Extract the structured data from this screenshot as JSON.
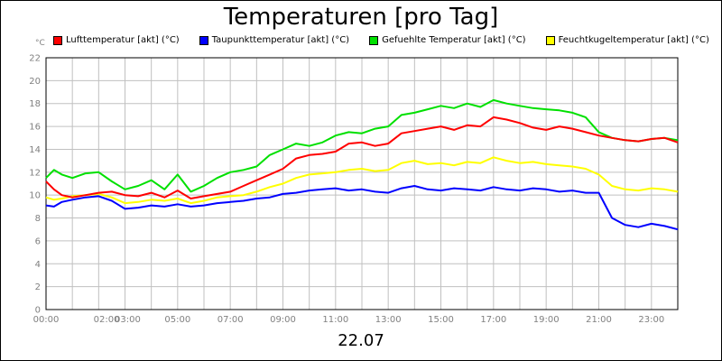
{
  "chart_data": {
    "type": "line",
    "title": "Temperaturen [pro Tag]",
    "subtitle": "22.07",
    "ylabel": "°C",
    "ylim": [
      0,
      22
    ],
    "yticks": [
      0,
      2,
      4,
      6,
      8,
      10,
      12,
      14,
      16,
      18,
      20,
      22
    ],
    "xlim": [
      0,
      24
    ],
    "xticks": [
      {
        "t": 0,
        "label": "00:00"
      },
      {
        "t": 2.3,
        "label": "02:00"
      },
      {
        "t": 3.1,
        "label": "03:00"
      },
      {
        "t": 5,
        "label": "05:00"
      },
      {
        "t": 7,
        "label": "07:00"
      },
      {
        "t": 9,
        "label": "09:00"
      },
      {
        "t": 11,
        "label": "11:00"
      },
      {
        "t": 13,
        "label": "13:00"
      },
      {
        "t": 15,
        "label": "15:00"
      },
      {
        "t": 17,
        "label": "17:00"
      },
      {
        "t": 19,
        "label": "19:00"
      },
      {
        "t": 21,
        "label": "21:00"
      },
      {
        "t": 23,
        "label": "23:00"
      }
    ],
    "grid": true,
    "series": [
      {
        "name": "Lufttemperatur [akt] (°C)",
        "color": "#ff0000",
        "x": [
          0,
          0.3,
          0.6,
          1,
          1.5,
          2,
          2.5,
          3,
          3.5,
          4,
          4.5,
          5,
          5.5,
          6,
          6.5,
          7,
          7.5,
          8,
          8.5,
          9,
          9.5,
          10,
          10.5,
          11,
          11.5,
          12,
          12.5,
          13,
          13.5,
          14,
          14.5,
          15,
          15.5,
          16,
          16.5,
          17,
          17.5,
          18,
          18.5,
          19,
          19.5,
          20,
          20.5,
          21,
          21.5,
          22,
          22.5,
          23,
          23.5,
          24
        ],
        "values": [
          11.2,
          10.5,
          10.0,
          9.8,
          10.0,
          10.2,
          10.3,
          10.0,
          9.9,
          10.2,
          9.8,
          10.4,
          9.7,
          9.9,
          10.1,
          10.3,
          10.8,
          11.3,
          11.8,
          12.3,
          13.2,
          13.5,
          13.6,
          13.8,
          14.5,
          14.6,
          14.3,
          14.5,
          15.4,
          15.6,
          15.8,
          16.0,
          15.7,
          16.1,
          16.0,
          16.8,
          16.6,
          16.3,
          15.9,
          15.7,
          16.0,
          15.8,
          15.5,
          15.2,
          15.0,
          14.8,
          14.7,
          14.9,
          15.0,
          14.6
        ]
      },
      {
        "name": "Taupunkttemperatur [akt] (°C)",
        "color": "#0000ff",
        "x": [
          0,
          0.3,
          0.6,
          1,
          1.5,
          2,
          2.5,
          3,
          3.5,
          4,
          4.5,
          5,
          5.5,
          6,
          6.5,
          7,
          7.5,
          8,
          8.5,
          9,
          9.5,
          10,
          10.5,
          11,
          11.5,
          12,
          12.5,
          13,
          13.5,
          14,
          14.5,
          15,
          15.5,
          16,
          16.5,
          17,
          17.5,
          18,
          18.5,
          19,
          19.5,
          20,
          20.5,
          21,
          21.5,
          22,
          22.5,
          23,
          23.5,
          24
        ],
        "values": [
          9.1,
          9.0,
          9.4,
          9.6,
          9.8,
          9.9,
          9.5,
          8.8,
          8.9,
          9.1,
          9.0,
          9.2,
          9.0,
          9.1,
          9.3,
          9.4,
          9.5,
          9.7,
          9.8,
          10.1,
          10.2,
          10.4,
          10.5,
          10.6,
          10.4,
          10.5,
          10.3,
          10.2,
          10.6,
          10.8,
          10.5,
          10.4,
          10.6,
          10.5,
          10.4,
          10.7,
          10.5,
          10.4,
          10.6,
          10.5,
          10.3,
          10.4,
          10.2,
          10.2,
          8.0,
          7.4,
          7.2,
          7.5,
          7.3,
          7.0
        ]
      },
      {
        "name": "Gefuehlte Temperatur [akt] (°C)",
        "color": "#00e000",
        "x": [
          0,
          0.3,
          0.6,
          1,
          1.5,
          2,
          2.5,
          3,
          3.5,
          4,
          4.5,
          5,
          5.5,
          6,
          6.5,
          7,
          7.5,
          8,
          8.5,
          9,
          9.5,
          10,
          10.5,
          11,
          11.5,
          12,
          12.5,
          13,
          13.5,
          14,
          14.5,
          15,
          15.5,
          16,
          16.5,
          17,
          17.5,
          18,
          18.5,
          19,
          19.5,
          20,
          20.5,
          21,
          21.5,
          22,
          22.5,
          23,
          23.5,
          24
        ],
        "values": [
          11.5,
          12.2,
          11.8,
          11.5,
          11.9,
          12.0,
          11.2,
          10.5,
          10.8,
          11.3,
          10.5,
          11.8,
          10.3,
          10.8,
          11.5,
          12.0,
          12.2,
          12.5,
          13.5,
          14.0,
          14.5,
          14.3,
          14.6,
          15.2,
          15.5,
          15.4,
          15.8,
          16.0,
          17.0,
          17.2,
          17.5,
          17.8,
          17.6,
          18.0,
          17.7,
          18.3,
          18.0,
          17.8,
          17.6,
          17.5,
          17.4,
          17.2,
          16.8,
          15.5,
          15.0,
          14.8,
          14.7,
          14.9,
          15.0,
          14.8
        ]
      },
      {
        "name": "Feuchtkugeltemperatur [akt] (°C)",
        "color": "#ffff00",
        "x": [
          0,
          0.3,
          0.6,
          1,
          1.5,
          2,
          2.5,
          3,
          3.5,
          4,
          4.5,
          5,
          5.5,
          6,
          6.5,
          7,
          7.5,
          8,
          8.5,
          9,
          9.5,
          10,
          10.5,
          11,
          11.5,
          12,
          12.5,
          13,
          13.5,
          14,
          14.5,
          15,
          15.5,
          16,
          16.5,
          17,
          17.5,
          18,
          18.5,
          19,
          19.5,
          20,
          20.5,
          21,
          21.5,
          22,
          22.5,
          23,
          23.5,
          24
        ],
        "values": [
          9.8,
          9.6,
          9.7,
          9.9,
          10.0,
          10.1,
          9.8,
          9.3,
          9.4,
          9.6,
          9.5,
          9.7,
          9.3,
          9.5,
          9.8,
          9.9,
          10.0,
          10.3,
          10.7,
          11.0,
          11.5,
          11.8,
          11.9,
          12.0,
          12.2,
          12.3,
          12.1,
          12.2,
          12.8,
          13.0,
          12.7,
          12.8,
          12.6,
          12.9,
          12.8,
          13.3,
          13.0,
          12.8,
          12.9,
          12.7,
          12.6,
          12.5,
          12.3,
          11.8,
          10.8,
          10.5,
          10.4,
          10.6,
          10.5,
          10.3
        ]
      }
    ]
  }
}
